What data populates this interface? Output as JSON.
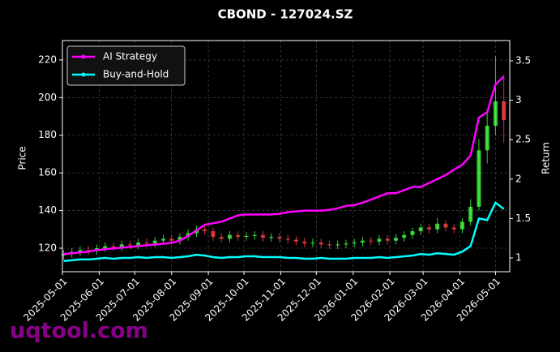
{
  "chart_data": {
    "type": "candlestick",
    "title": "CBOND - 127024.SZ",
    "ylabel": "Price",
    "y2label": "Return",
    "watermark": "uqtool.com",
    "x": [
      "2025-05-02",
      "2025-05-09",
      "2025-05-16",
      "2025-05-23",
      "2025-05-30",
      "2025-06-06",
      "2025-06-13",
      "2025-06-20",
      "2025-06-27",
      "2025-07-04",
      "2025-07-11",
      "2025-07-18",
      "2025-07-25",
      "2025-08-01",
      "2025-08-08",
      "2025-08-15",
      "2025-08-22",
      "2025-08-29",
      "2025-09-05",
      "2025-09-12",
      "2025-09-19",
      "2025-09-26",
      "2025-10-03",
      "2025-10-10",
      "2025-10-17",
      "2025-10-24",
      "2025-10-31",
      "2025-11-07",
      "2025-11-14",
      "2025-11-21",
      "2025-11-28",
      "2025-12-05",
      "2025-12-12",
      "2025-12-19",
      "2025-12-26",
      "2026-01-02",
      "2026-01-09",
      "2026-01-16",
      "2026-01-23",
      "2026-01-30",
      "2026-02-06",
      "2026-02-13",
      "2026-02-20",
      "2026-02-27",
      "2026-03-06",
      "2026-03-13",
      "2026-03-20",
      "2026-03-27",
      "2026-04-03",
      "2026-04-10",
      "2026-04-17",
      "2026-04-24",
      "2026-05-01",
      "2026-05-08"
    ],
    "open": [
      116,
      117,
      118,
      119,
      118.5,
      120,
      121,
      120.5,
      122,
      121.5,
      123,
      122.5,
      124,
      125,
      124,
      126,
      128,
      130,
      129,
      126,
      125,
      127,
      126,
      126.5,
      127,
      125.5,
      126,
      125,
      124.5,
      123.5,
      122.5,
      123,
      122,
      121.5,
      122,
      122.5,
      123,
      124,
      123.5,
      125,
      124,
      125.5,
      127,
      129,
      131,
      130,
      133,
      131,
      130,
      134,
      142,
      172,
      185,
      198
    ],
    "high": [
      119,
      120,
      121,
      121,
      122,
      123,
      123,
      124,
      124,
      125,
      125,
      126,
      127,
      127,
      128,
      130,
      132,
      133,
      131,
      128,
      129,
      129,
      128.5,
      129,
      129,
      128,
      128,
      127,
      126.5,
      125.5,
      125,
      125,
      124,
      124,
      124.5,
      125,
      126,
      126,
      127,
      127,
      127.5,
      129,
      131,
      133,
      133,
      136,
      135,
      133,
      136,
      146,
      178,
      192,
      222,
      212
    ],
    "low": [
      114,
      115,
      116,
      116.5,
      116.5,
      118,
      118.5,
      118.5,
      119.5,
      119.5,
      120.5,
      120.5,
      122,
      122,
      122,
      124,
      126,
      127,
      124,
      123,
      123,
      124,
      124,
      124.5,
      123.5,
      123.5,
      123,
      122.5,
      121.5,
      120.5,
      120.5,
      120,
      119.5,
      119.5,
      120,
      120.5,
      121,
      121.5,
      121.5,
      122,
      122,
      123.5,
      125,
      127,
      128,
      128,
      129,
      128,
      128,
      132,
      140,
      165,
      180,
      176
    ],
    "close": [
      117,
      118,
      119,
      118.5,
      120,
      121,
      120.5,
      122,
      121.5,
      123,
      122.5,
      124,
      125,
      124,
      126,
      128,
      130,
      129,
      126,
      125,
      127,
      126,
      126.5,
      127,
      125.5,
      126,
      125,
      124.5,
      123.5,
      122.5,
      123,
      122,
      121.5,
      122,
      122.5,
      123,
      124,
      123.5,
      125,
      124,
      125.5,
      127,
      129,
      131,
      130,
      133,
      131,
      130,
      134,
      142,
      172,
      185,
      198,
      188
    ],
    "up_color": "#44ff44",
    "down_color": "#ff4444",
    "series": [
      {
        "name": "AI Strategy",
        "color": "#ff00ff",
        "axis": "y2",
        "values": [
          1.05,
          1.06,
          1.07,
          1.08,
          1.1,
          1.11,
          1.12,
          1.13,
          1.14,
          1.15,
          1.16,
          1.17,
          1.18,
          1.19,
          1.22,
          1.28,
          1.35,
          1.42,
          1.44,
          1.46,
          1.5,
          1.54,
          1.55,
          1.55,
          1.55,
          1.55,
          1.56,
          1.58,
          1.59,
          1.6,
          1.6,
          1.6,
          1.61,
          1.63,
          1.66,
          1.67,
          1.7,
          1.74,
          1.78,
          1.82,
          1.82,
          1.86,
          1.9,
          1.9,
          1.95,
          2.0,
          2.05,
          2.12,
          2.18,
          2.3,
          2.78,
          2.85,
          3.2,
          3.3
        ]
      },
      {
        "name": "Buy-and-Hold",
        "color": "#00ffff",
        "axis": "y2",
        "values": [
          0.96,
          0.97,
          0.98,
          0.98,
          0.99,
          1.0,
          0.99,
          1.0,
          1.0,
          1.01,
          1.0,
          1.01,
          1.01,
          1.0,
          1.01,
          1.02,
          1.04,
          1.03,
          1.01,
          1.0,
          1.01,
          1.01,
          1.02,
          1.02,
          1.01,
          1.01,
          1.01,
          1.0,
          1.0,
          0.99,
          0.99,
          1.0,
          0.99,
          0.99,
          0.99,
          1.0,
          1.0,
          1.0,
          1.01,
          1.0,
          1.01,
          1.02,
          1.03,
          1.05,
          1.04,
          1.06,
          1.05,
          1.04,
          1.08,
          1.15,
          1.5,
          1.48,
          1.7,
          1.62
        ]
      }
    ],
    "xlim": [
      "2025-05-01",
      "2026-05-13"
    ],
    "xticks": [
      "2025-05-01",
      "2025-06-01",
      "2025-07-01",
      "2025-08-01",
      "2025-09-01",
      "2025-10-01",
      "2025-11-01",
      "2025-12-01",
      "2026-01-01",
      "2026-02-01",
      "2026-03-01",
      "2026-04-01",
      "2026-05-01"
    ],
    "ylim": [
      107.5,
      230.3
    ],
    "yticks": [
      120,
      140,
      160,
      180,
      200,
      220
    ],
    "y2lim": [
      0.825,
      3.757
    ],
    "y2ticks": [
      1.0,
      1.5,
      2.0,
      2.5,
      3.0,
      3.5
    ],
    "grid": true,
    "legend": "upper left"
  }
}
